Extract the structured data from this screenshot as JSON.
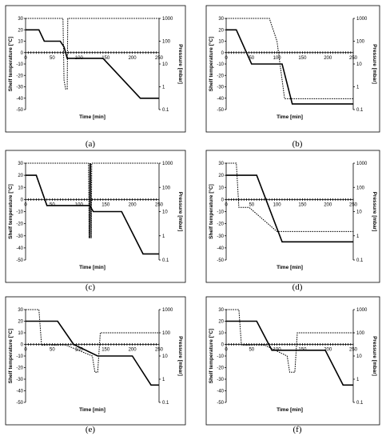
{
  "chart_data": [
    {
      "type": "line",
      "panel_label": "(a)",
      "xlabel": "Time [min]",
      "ylabel_left": "Shelf temperature [°C]",
      "ylabel_right": "Pressure [mbar]",
      "xlim": [
        0,
        250
      ],
      "x_ticks": [
        0,
        50,
        100,
        150,
        200,
        250
      ],
      "ylim_left": [
        -50,
        30
      ],
      "y_ticks_left": [
        30,
        20,
        10,
        0,
        -10,
        -20,
        -30,
        -40,
        -50
      ],
      "ylim_right": [
        0.1,
        1000
      ],
      "y_ticks_right": [
        1000,
        100,
        10,
        1,
        0.1
      ],
      "right_scale": "log",
      "series": [
        {
          "role": "shelf_temperature",
          "style": "solid",
          "points": [
            [
              0,
              20
            ],
            [
              25,
              20
            ],
            [
              35,
              10
            ],
            [
              60,
              10
            ],
            [
              65,
              10
            ],
            [
              72,
              5
            ],
            [
              78,
              -5
            ],
            [
              145,
              -5
            ],
            [
              215,
              -40
            ],
            [
              250,
              -40
            ]
          ]
        },
        {
          "role": "pressure",
          "style": "dotted",
          "points": [
            [
              0,
              1000
            ],
            [
              70,
              1000
            ],
            [
              72,
              2
            ],
            [
              75,
              0.8
            ],
            [
              78,
              0.8
            ],
            [
              79,
              1000
            ],
            [
              250,
              1000
            ]
          ]
        }
      ]
    },
    {
      "type": "line",
      "panel_label": "(b)",
      "xlabel": "Time [min]",
      "ylabel_left": "Shelf temperature [°C]",
      "ylabel_right": "Pressure [mbar]",
      "xlim": [
        0,
        250
      ],
      "x_ticks": [
        0,
        50,
        100,
        150,
        200,
        250
      ],
      "ylim_left": [
        -50,
        30
      ],
      "y_ticks_left": [
        30,
        20,
        10,
        0,
        -10,
        -20,
        -30,
        -40,
        -50
      ],
      "ylim_right": [
        0.1,
        1000
      ],
      "y_ticks_right": [
        1000,
        100,
        10,
        1,
        0.1
      ],
      "right_scale": "log",
      "series": [
        {
          "role": "shelf_temperature",
          "style": "solid",
          "points": [
            [
              0,
              20
            ],
            [
              20,
              20
            ],
            [
              50,
              -10
            ],
            [
              110,
              -10
            ],
            [
              130,
              -45
            ],
            [
              250,
              -45
            ]
          ]
        },
        {
          "role": "pressure",
          "style": "dotted",
          "points": [
            [
              0,
              1000
            ],
            [
              85,
              1000
            ],
            [
              100,
              100
            ],
            [
              115,
              0.3
            ],
            [
              250,
              0.3
            ]
          ]
        }
      ]
    },
    {
      "type": "line",
      "panel_label": "(c)",
      "xlabel": "Time [min]",
      "ylabel_left": "Shelf temperature [°C]",
      "ylabel_right": "Pressure [mbar]",
      "xlim": [
        0,
        250
      ],
      "x_ticks": [
        0,
        50,
        100,
        150,
        200,
        250
      ],
      "ylim_left": [
        -50,
        30
      ],
      "y_ticks_left": [
        30,
        20,
        10,
        0,
        -10,
        -20,
        -30,
        -40,
        -50
      ],
      "ylim_right": [
        0.1,
        1000
      ],
      "y_ticks_right": [
        1000,
        100,
        10,
        1,
        0.1
      ],
      "right_scale": "log",
      "series": [
        {
          "role": "shelf_temperature",
          "style": "solid",
          "points": [
            [
              0,
              20
            ],
            [
              20,
              20
            ],
            [
              40,
              -5
            ],
            [
              120,
              -5
            ],
            [
              127,
              -10
            ],
            [
              180,
              -10
            ],
            [
              220,
              -45
            ],
            [
              250,
              -45
            ]
          ]
        },
        {
          "role": "pressure",
          "style": "dotted",
          "points": [
            [
              0,
              1000
            ],
            [
              118,
              1000
            ],
            [
              119,
              0.8
            ],
            [
              120,
              1000
            ],
            [
              121,
              0.8
            ],
            [
              122,
              1000
            ],
            [
              123,
              0.8
            ],
            [
              124,
              1000
            ],
            [
              250,
              1000
            ]
          ]
        }
      ]
    },
    {
      "type": "line",
      "panel_label": "(d)",
      "xlabel": "Time [min]",
      "ylabel_left": "Shelf temperature [°C]",
      "ylabel_right": "Pressure [mbar]",
      "xlim": [
        0,
        250
      ],
      "x_ticks": [
        0,
        50,
        100,
        150,
        200,
        250
      ],
      "ylim_left": [
        -50,
        30
      ],
      "y_ticks_left": [
        30,
        20,
        10,
        0,
        -10,
        -20,
        -30,
        -40,
        -50
      ],
      "ylim_right": [
        0.1,
        1000
      ],
      "y_ticks_right": [
        1000,
        100,
        10,
        1,
        0.1
      ],
      "right_scale": "log",
      "series": [
        {
          "role": "shelf_temperature",
          "style": "solid",
          "points": [
            [
              0,
              20
            ],
            [
              60,
              20
            ],
            [
              110,
              -35
            ],
            [
              250,
              -35
            ]
          ]
        },
        {
          "role": "pressure",
          "style": "dotted",
          "points": [
            [
              0,
              1000
            ],
            [
              20,
              1000
            ],
            [
              25,
              15
            ],
            [
              45,
              15
            ],
            [
              100,
              1.5
            ],
            [
              250,
              1.5
            ]
          ]
        }
      ]
    },
    {
      "type": "line",
      "panel_label": "(e)",
      "xlabel": "Time [min]",
      "ylabel_left": "Shelf temperature [°C]",
      "ylabel_right": "Pressure [mbar]",
      "xlim": [
        0,
        250
      ],
      "x_ticks": [
        0,
        50,
        100,
        150,
        200,
        250
      ],
      "ylim_left": [
        -50,
        30
      ],
      "y_ticks_left": [
        30,
        20,
        10,
        0,
        -10,
        -20,
        -30,
        -40,
        -50
      ],
      "ylim_right": [
        0.1,
        1000
      ],
      "y_ticks_right": [
        1000,
        100,
        10,
        1,
        0.1
      ],
      "right_scale": "log",
      "series": [
        {
          "role": "shelf_temperature",
          "style": "solid",
          "points": [
            [
              0,
              20
            ],
            [
              60,
              20
            ],
            [
              90,
              0
            ],
            [
              135,
              -10
            ],
            [
              200,
              -10
            ],
            [
              235,
              -35
            ],
            [
              250,
              -35
            ]
          ]
        },
        {
          "role": "pressure",
          "style": "dotted",
          "points": [
            [
              0,
              1000
            ],
            [
              25,
              1000
            ],
            [
              30,
              30
            ],
            [
              75,
              30
            ],
            [
              125,
              10
            ],
            [
              130,
              2
            ],
            [
              135,
              2
            ],
            [
              140,
              100
            ],
            [
              250,
              100
            ]
          ]
        }
      ]
    },
    {
      "type": "line",
      "panel_label": "(f)",
      "xlabel": "Time [min]",
      "ylabel_left": "Shelf temperature [°C]",
      "ylabel_right": "Pressure [mbar]",
      "xlim": [
        0,
        250
      ],
      "x_ticks": [
        0,
        50,
        100,
        150,
        200,
        250
      ],
      "ylim_left": [
        -50,
        30
      ],
      "y_ticks_left": [
        30,
        20,
        10,
        0,
        -10,
        -20,
        -30,
        -40,
        -50
      ],
      "ylim_right": [
        0.1,
        1000
      ],
      "y_ticks_right": [
        1000,
        100,
        10,
        1,
        0.1
      ],
      "right_scale": "log",
      "series": [
        {
          "role": "shelf_temperature",
          "style": "solid",
          "points": [
            [
              0,
              20
            ],
            [
              60,
              20
            ],
            [
              90,
              -5
            ],
            [
              195,
              -5
            ],
            [
              230,
              -35
            ],
            [
              250,
              -35
            ]
          ]
        },
        {
          "role": "pressure",
          "style": "dotted",
          "points": [
            [
              0,
              1000
            ],
            [
              25,
              1000
            ],
            [
              30,
              30
            ],
            [
              75,
              30
            ],
            [
              120,
              10
            ],
            [
              125,
              2
            ],
            [
              135,
              2
            ],
            [
              140,
              100
            ],
            [
              250,
              100
            ]
          ]
        }
      ]
    }
  ]
}
